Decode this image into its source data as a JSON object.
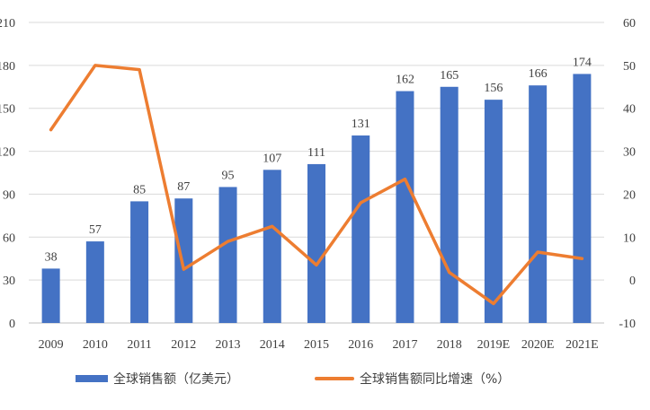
{
  "chart_data": {
    "type": "bar+line",
    "categories": [
      "2009",
      "2010",
      "2011",
      "2012",
      "2013",
      "2014",
      "2015",
      "2016",
      "2017",
      "2018",
      "2019E",
      "2020E",
      "2021E"
    ],
    "series": [
      {
        "name": "全球销售额（亿美元）",
        "type": "bar",
        "axis": "left",
        "color": "#4472C4",
        "values": [
          38,
          57,
          85,
          87,
          95,
          107,
          111,
          131,
          162,
          165,
          156,
          166,
          174
        ]
      },
      {
        "name": "全球销售额同比增速（%）",
        "type": "line",
        "axis": "right",
        "color": "#ED7D31",
        "values": [
          35,
          50,
          49,
          2.5,
          9,
          12.5,
          3.5,
          18,
          23.5,
          1.8,
          -5.5,
          6.5,
          5
        ]
      }
    ],
    "left_axis": {
      "ylim": [
        0,
        210
      ],
      "ticks": [
        "0",
        "30",
        "60",
        "90",
        "120",
        "150",
        "180",
        "210"
      ]
    },
    "right_axis": {
      "ylim": [
        -10,
        60
      ],
      "ticks": [
        "-10",
        "0",
        "10",
        "20",
        "30",
        "40",
        "50",
        "60"
      ]
    },
    "legend": {
      "position": "bottom",
      "items": [
        "全球销售额（亿美元）",
        "全球销售额同比增速（%）"
      ]
    }
  }
}
